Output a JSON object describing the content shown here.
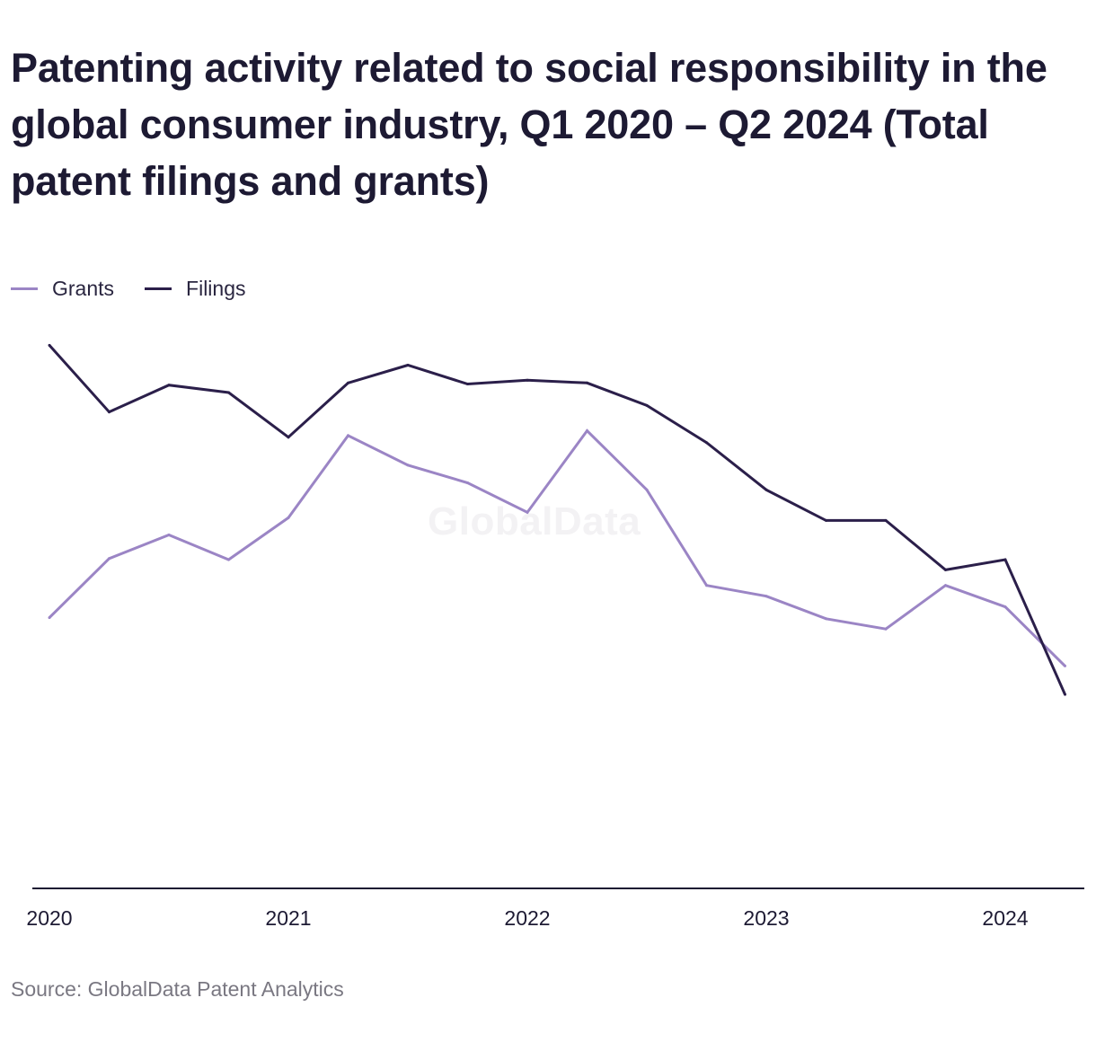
{
  "title": "Patenting activity related to social responsibility in the global consumer industry, Q1 2020 – Q2 2024 (Total patent filings and grants)",
  "source": "Source: GlobalData Patent Analytics",
  "watermark": "GlobalData",
  "colors": {
    "grants": "#9b85c5",
    "filings": "#2b1f4a",
    "axis": "#1d1a33"
  },
  "legend": [
    {
      "label": "Grants",
      "color": "#9b85c5"
    },
    {
      "label": "Filings",
      "color": "#2b1f4a"
    }
  ],
  "chart_data": {
    "type": "line",
    "title": "Patenting activity related to social responsibility in the global consumer industry, Q1 2020 – Q2 2024 (Total patent filings and grants)",
    "xlabel": "",
    "ylabel": "",
    "x": [
      "Q1 2020",
      "Q2 2020",
      "Q3 2020",
      "Q4 2020",
      "Q1 2021",
      "Q2 2021",
      "Q3 2021",
      "Q4 2021",
      "Q1 2022",
      "Q2 2022",
      "Q3 2022",
      "Q4 2022",
      "Q1 2023",
      "Q2 2023",
      "Q3 2023",
      "Q4 2023",
      "Q1 2024",
      "Q2 2024"
    ],
    "x_tick_labels": [
      "2020",
      "2021",
      "2022",
      "2023",
      "2024"
    ],
    "x_tick_positions": [
      "Q1 2020",
      "Q1 2021",
      "Q1 2022",
      "Q1 2023",
      "Q1 2024"
    ],
    "ylim": [
      0,
      100
    ],
    "grid": false,
    "legend_position": "top-left",
    "series": [
      {
        "name": "Grants",
        "color": "#9b85c5",
        "values": [
          50.4,
          61.4,
          65.8,
          61.2,
          69.0,
          84.3,
          78.8,
          75.5,
          70.0,
          85.2,
          74.2,
          56.4,
          54.4,
          50.2,
          48.3,
          56.4,
          52.4,
          41.4
        ]
      },
      {
        "name": "Filings",
        "color": "#2b1f4a",
        "values": [
          101.1,
          88.7,
          93.7,
          92.3,
          84.0,
          94.1,
          97.4,
          93.9,
          94.6,
          94.1,
          89.9,
          83.0,
          74.2,
          68.5,
          68.5,
          59.3,
          61.2,
          36.1
        ]
      }
    ]
  }
}
